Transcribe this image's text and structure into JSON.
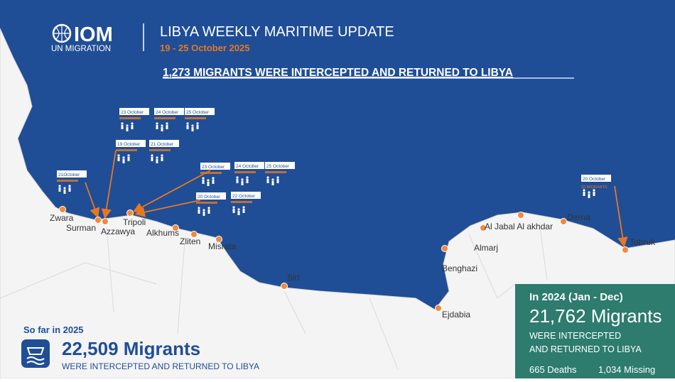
{
  "header": {
    "logo": "IOM",
    "logo_sub": "UN MIGRATION",
    "title": "LIBYA WEEKLY MARITIME UPDATE",
    "dates": "19 - 25 October 2025",
    "headline": "1,273 MIGRANTS WERE INTERCEPTED AND RETURNED TO LIBYA"
  },
  "cities": [
    "Zwara",
    "Surman",
    "Azzawya",
    "Tripoli",
    "Alkhums",
    "Zliten",
    "Misrata",
    "Sirt",
    "Benghazi",
    "Almarj",
    "Al Jabal Al akhdar",
    "Derna",
    "Tobruk",
    "Ejdabia"
  ],
  "events": [
    {
      "date": "23 October"
    },
    {
      "date": "24 October"
    },
    {
      "date": "25 October"
    },
    {
      "date": "19 October"
    },
    {
      "date": "21 October"
    },
    {
      "date": "21October"
    },
    {
      "date": "23 October"
    },
    {
      "date": "24 October"
    },
    {
      "date": "25 October"
    },
    {
      "date": "20 October"
    },
    {
      "date": "22 October"
    },
    {
      "date": "20 October",
      "count": "33 MIGRANTS"
    }
  ],
  "summary_2025": {
    "label": "So far in 2025",
    "total": "22,509 Migrants",
    "text": "WERE INTERCEPTED AND RETURNED TO LIBYA"
  },
  "summary_2024": {
    "label": "In 2024 (Jan - Dec)",
    "total": "21,762 Migrants",
    "line1": "WERE INTERCEPTED",
    "line2": "AND RETURNED TO LIBYA",
    "deaths": "665 Deaths",
    "missing": "1,034 Missing"
  }
}
